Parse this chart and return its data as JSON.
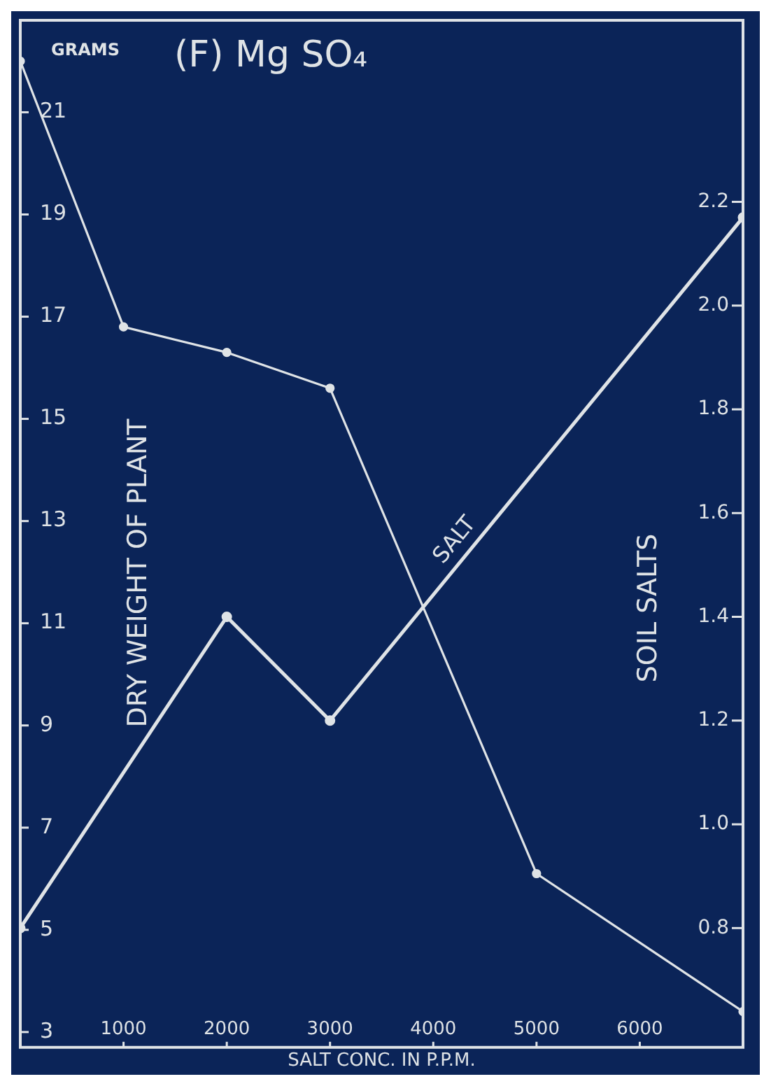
{
  "chart_data": {
    "type": "line",
    "title": "(F) Mg SO₄",
    "xlabel": "SALT CONC. IN P.P.M.",
    "ylabel": "DRY WEIGHT OF PLANT",
    "y2label": "SOIL SALTS",
    "annotations": [
      "GRAMS"
    ],
    "series": [
      {
        "color": "#dfe3e6",
        "x": [
          0,
          1000,
          2000,
          3000,
          5000,
          7000
        ],
        "values": [
          22.0,
          16.8,
          16.3,
          15.6,
          6.1,
          3.4
        ]
      },
      {
        "name": "SALT",
        "color": "#dfe3e6",
        "axis": "y2",
        "x": [
          0,
          2000,
          3000,
          7000
        ],
        "values": [
          0.8,
          1.4,
          1.2,
          2.17
        ]
      }
    ],
    "xlim": [
      0,
      7000
    ],
    "xticks": [
      1000,
      2000,
      3000,
      4000,
      5000,
      6000
    ],
    "ylim": [
      2.7,
      22.8
    ],
    "yticks": [
      3,
      5,
      7,
      9,
      11,
      13,
      15,
      17,
      19,
      21
    ],
    "y2lim": [
      0.57,
      2.55
    ],
    "y2ticks": [
      0.8,
      {
        "value": 1,
        "label": "1.0"
      },
      1.2,
      1.4,
      1.6,
      1.8,
      {
        "value": 2,
        "label": "2.0"
      },
      2.2
    ],
    "grid": false,
    "legend": false,
    "marker": "circle",
    "line_style": "solid"
  }
}
